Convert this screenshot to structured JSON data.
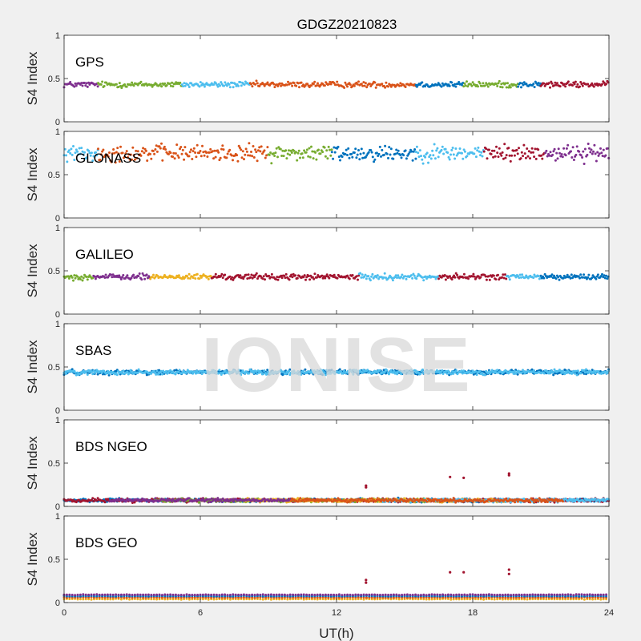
{
  "figure_title": "GDGZ20210823",
  "watermark": "IONISE",
  "colors": {
    "background": "#f0f0f0",
    "axes_bg": "#ffffff",
    "axis": "#262626",
    "palette": [
      "#0072bd",
      "#d95319",
      "#edb120",
      "#7e2f8e",
      "#77ac30",
      "#4dbeee",
      "#a2142f"
    ]
  },
  "chart_data": [
    {
      "type": "scatter",
      "title": "GPS",
      "ylabel": "S4 Index",
      "xlim": [
        0,
        24
      ],
      "ylim": [
        0,
        1
      ],
      "xticks": [
        0,
        6,
        12,
        18,
        24
      ],
      "yticks": [
        0,
        0.5,
        1
      ],
      "series_profile": {
        "mean": 0.43,
        "spread": 0.05
      },
      "color_segments": [
        {
          "x": [
            0,
            1.5
          ],
          "color": "#7e2f8e"
        },
        {
          "x": [
            1.5,
            4.3
          ],
          "color": "#77ac30"
        },
        {
          "x": [
            4.3,
            5.2
          ],
          "color": "#77ac30"
        },
        {
          "x": [
            5.2,
            8.2
          ],
          "color": "#4dbeee"
        },
        {
          "x": [
            8.2,
            15.5
          ],
          "color": "#d95319"
        },
        {
          "x": [
            15.5,
            17.6
          ],
          "color": "#0072bd"
        },
        {
          "x": [
            17.6,
            20.0
          ],
          "color": "#77ac30"
        },
        {
          "x": [
            20.0,
            21.0
          ],
          "color": "#0072bd"
        },
        {
          "x": [
            21.0,
            24
          ],
          "color": "#a2142f"
        }
      ]
    },
    {
      "type": "scatter",
      "title": "GLONASS",
      "ylabel": "S4 Index",
      "xlim": [
        0,
        24
      ],
      "ylim": [
        0,
        1
      ],
      "xticks": [
        0,
        6,
        12,
        18,
        24
      ],
      "yticks": [
        0,
        0.5,
        1
      ],
      "series_profile": {
        "mean": 0.75,
        "spread": 0.14
      },
      "color_segments": [
        {
          "x": [
            0,
            1.5
          ],
          "color": "#4dbeee"
        },
        {
          "x": [
            1.5,
            6.8
          ],
          "color": "#d95319"
        },
        {
          "x": [
            6.8,
            9.0
          ],
          "color": "#d95319"
        },
        {
          "x": [
            9.0,
            11.8
          ],
          "color": "#77ac30"
        },
        {
          "x": [
            11.8,
            15.5
          ],
          "color": "#0072bd"
        },
        {
          "x": [
            15.5,
            18.5
          ],
          "color": "#4dbeee"
        },
        {
          "x": [
            18.5,
            21.2
          ],
          "color": "#a2142f"
        },
        {
          "x": [
            21.2,
            24
          ],
          "color": "#7e2f8e"
        }
      ]
    },
    {
      "type": "scatter",
      "title": "GALILEO",
      "ylabel": "S4 Index",
      "xlim": [
        0,
        24
      ],
      "ylim": [
        0,
        1
      ],
      "xticks": [
        0,
        6,
        12,
        18,
        24
      ],
      "yticks": [
        0,
        0.5,
        1
      ],
      "series_profile": {
        "mean": 0.43,
        "spread": 0.05
      },
      "color_segments": [
        {
          "x": [
            0,
            1.3
          ],
          "color": "#77ac30"
        },
        {
          "x": [
            1.3,
            3.8
          ],
          "color": "#7e2f8e"
        },
        {
          "x": [
            3.8,
            6.5
          ],
          "color": "#edb120"
        },
        {
          "x": [
            6.5,
            13.0
          ],
          "color": "#a2142f"
        },
        {
          "x": [
            13.0,
            16.5
          ],
          "color": "#4dbeee"
        },
        {
          "x": [
            16.5,
            19.5
          ],
          "color": "#a2142f"
        },
        {
          "x": [
            19.5,
            21.0
          ],
          "color": "#4dbeee"
        },
        {
          "x": [
            21.0,
            24
          ],
          "color": "#0072bd"
        }
      ]
    },
    {
      "type": "scatter",
      "title": "SBAS",
      "ylabel": "S4 Index",
      "xlim": [
        0,
        24
      ],
      "ylim": [
        0,
        1
      ],
      "xticks": [
        0,
        6,
        12,
        18,
        24
      ],
      "yticks": [
        0,
        0.5,
        1
      ],
      "series_profile": {
        "mean": 0.44,
        "spread": 0.04
      },
      "color_segments": [
        {
          "x": [
            0,
            24
          ],
          "color": "#0072bd"
        },
        {
          "x": [
            0,
            24
          ],
          "color": "#4dbeee"
        }
      ]
    },
    {
      "type": "scatter",
      "title": "BDS NGEO",
      "ylabel": "S4 Index",
      "xlim": [
        0,
        24
      ],
      "ylim": [
        0,
        1
      ],
      "xticks": [
        0,
        6,
        12,
        18,
        24
      ],
      "yticks": [
        0,
        0.5,
        1
      ],
      "series_profile": {
        "mean": 0.07,
        "spread": 0.03
      },
      "color_segments": [
        {
          "x": [
            0,
            24
          ],
          "color": "#0072bd"
        },
        {
          "x": [
            0,
            24
          ],
          "color": "#a2142f"
        },
        {
          "x": [
            4,
            16
          ],
          "color": "#77ac30"
        },
        {
          "x": [
            8,
            20
          ],
          "color": "#edb120"
        },
        {
          "x": [
            14,
            24
          ],
          "color": "#4dbeee"
        },
        {
          "x": [
            2,
            10
          ],
          "color": "#7e2f8e"
        },
        {
          "x": [
            10,
            22
          ],
          "color": "#d95319"
        }
      ],
      "outliers": [
        {
          "x": 13.3,
          "y": 0.24
        },
        {
          "x": 13.3,
          "y": 0.22
        },
        {
          "x": 17.0,
          "y": 0.34
        },
        {
          "x": 17.6,
          "y": 0.33
        },
        {
          "x": 19.6,
          "y": 0.38
        },
        {
          "x": 19.6,
          "y": 0.36
        }
      ]
    },
    {
      "type": "scatter",
      "title": "BDS GEO",
      "ylabel": "S4 Index",
      "xlabel": "UT(h)",
      "xlim": [
        0,
        24
      ],
      "ylim": [
        0,
        1
      ],
      "xticks": [
        0,
        6,
        12,
        18,
        24
      ],
      "yticks": [
        0,
        0.5,
        1
      ],
      "series_profile": {
        "mean": 0.07,
        "spread": 0.01
      },
      "bands": [
        {
          "y": 0.04,
          "color": "#edb120"
        },
        {
          "y": 0.06,
          "color": "#d95319"
        },
        {
          "y": 0.075,
          "color": "#0072bd"
        },
        {
          "y": 0.09,
          "color": "#7e2f8e"
        }
      ],
      "outliers": [
        {
          "x": 13.3,
          "y": 0.26
        },
        {
          "x": 13.3,
          "y": 0.23
        },
        {
          "x": 17.0,
          "y": 0.35
        },
        {
          "x": 17.6,
          "y": 0.35
        },
        {
          "x": 19.6,
          "y": 0.38
        },
        {
          "x": 19.6,
          "y": 0.33
        }
      ]
    }
  ]
}
